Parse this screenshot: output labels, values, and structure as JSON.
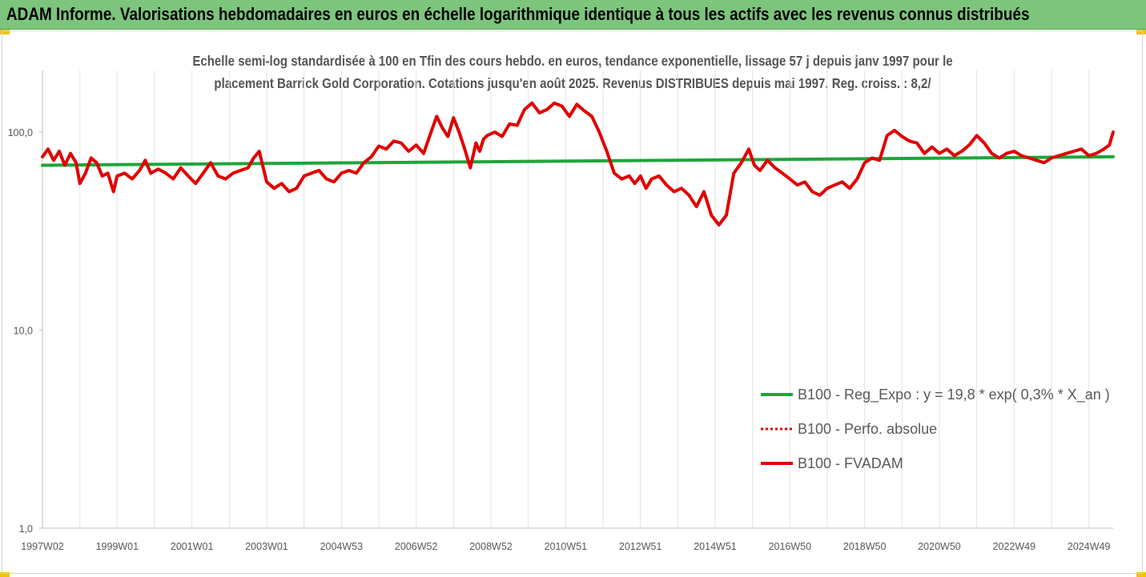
{
  "banner": {
    "title": "ADAM Informe. Valorisations hebdomadaires en euros en échelle logarithmique identique à tous les actifs avec les revenus connus distribués",
    "background": "#7dc47d"
  },
  "chart_data": {
    "type": "line",
    "title_line1": "Echelle semi-log standardisée à 100 en Tfin des cours hebdo. en euros, tendance exponentielle, lissage 57 j depuis janv 1997 pour le",
    "title_line2": "placement Barrick Gold Corporation. Cotations jusqu'en août 2025. Revenus DISTRIBUES depuis mai 1997. Reg. croiss. : 8,2/",
    "y_scale": "log",
    "ylim": [
      1,
      200
    ],
    "y_ticks": [
      {
        "value": 1,
        "label": "1,0"
      },
      {
        "value": 10,
        "label": "10,0"
      },
      {
        "value": 100,
        "label": "100,0"
      }
    ],
    "xlim": [
      1997.0,
      2025.65
    ],
    "x_ticks": [
      {
        "value": 1997.0,
        "label": "1997W02"
      },
      {
        "value": 1999.0,
        "label": "1999W01"
      },
      {
        "value": 2001.0,
        "label": "2001W01"
      },
      {
        "value": 2003.0,
        "label": "2003W01"
      },
      {
        "value": 2005.0,
        "label": "2004W53"
      },
      {
        "value": 2007.0,
        "label": "2006W52"
      },
      {
        "value": 2009.0,
        "label": "2008W52"
      },
      {
        "value": 2011.0,
        "label": "2010W51"
      },
      {
        "value": 2013.0,
        "label": "2012W51"
      },
      {
        "value": 2015.0,
        "label": "2014W51"
      },
      {
        "value": 2017.0,
        "label": "2016W50"
      },
      {
        "value": 2019.0,
        "label": "2018W50"
      },
      {
        "value": 2021.0,
        "label": "2020W50"
      },
      {
        "value": 2023.0,
        "label": "2022W49"
      },
      {
        "value": 2025.0,
        "label": "2024W49"
      }
    ],
    "grid": "vertical",
    "legend_position": "bottom-right",
    "series": [
      {
        "name": "B100 - Reg_Expo : y = 19,8 * exp( 0,3% *  X_an )",
        "color": "#1fa53a",
        "style": "solid",
        "x": [
          1997.0,
          2025.65
        ],
        "y": [
          68,
          75
        ]
      },
      {
        "name": "B100 - Perfo. absolue",
        "color": "#e00000",
        "style": "dotted",
        "x": [],
        "y": []
      },
      {
        "name": "B100 - FVADAM",
        "color": "#e00000",
        "style": "solid",
        "x": [
          1997.0,
          1997.15,
          1997.3,
          1997.45,
          1997.6,
          1997.75,
          1997.9,
          1998.0,
          1998.15,
          1998.3,
          1998.45,
          1998.6,
          1998.75,
          1998.9,
          1999.0,
          1999.2,
          1999.4,
          1999.6,
          1999.75,
          1999.9,
          2000.1,
          2000.3,
          2000.5,
          2000.7,
          2000.9,
          2001.1,
          2001.3,
          2001.5,
          2001.7,
          2001.9,
          2002.1,
          2002.3,
          2002.5,
          2002.65,
          2002.8,
          2003.0,
          2003.2,
          2003.4,
          2003.6,
          2003.8,
          2004.0,
          2004.2,
          2004.4,
          2004.6,
          2004.8,
          2005.0,
          2005.2,
          2005.4,
          2005.6,
          2005.8,
          2006.0,
          2006.2,
          2006.4,
          2006.6,
          2006.8,
          2007.0,
          2007.2,
          2007.4,
          2007.55,
          2007.7,
          2007.85,
          2008.0,
          2008.15,
          2008.3,
          2008.45,
          2008.6,
          2008.7,
          2008.8,
          2008.9,
          2009.1,
          2009.3,
          2009.5,
          2009.7,
          2009.9,
          2010.1,
          2010.3,
          2010.5,
          2010.7,
          2010.9,
          2011.1,
          2011.3,
          2011.5,
          2011.7,
          2011.9,
          2012.1,
          2012.3,
          2012.5,
          2012.7,
          2012.85,
          2013.0,
          2013.15,
          2013.3,
          2013.5,
          2013.7,
          2013.9,
          2014.1,
          2014.3,
          2014.5,
          2014.7,
          2014.9,
          2015.1,
          2015.3,
          2015.5,
          2015.7,
          2015.9,
          2016.05,
          2016.2,
          2016.4,
          2016.6,
          2016.8,
          2017.0,
          2017.2,
          2017.4,
          2017.6,
          2017.8,
          2018.0,
          2018.2,
          2018.4,
          2018.6,
          2018.8,
          2019.0,
          2019.2,
          2019.4,
          2019.6,
          2019.8,
          2020.0,
          2020.2,
          2020.4,
          2020.6,
          2020.8,
          2021.0,
          2021.2,
          2021.4,
          2021.6,
          2021.8,
          2022.0,
          2022.2,
          2022.4,
          2022.6,
          2022.8,
          2023.0,
          2023.2,
          2023.4,
          2023.6,
          2023.8,
          2024.0,
          2024.2,
          2024.4,
          2024.6,
          2024.8,
          2025.0,
          2025.2,
          2025.4,
          2025.55,
          2025.65
        ],
        "y": [
          75,
          82,
          72,
          80,
          68,
          78,
          70,
          55,
          62,
          74,
          70,
          60,
          62,
          50,
          60,
          62,
          58,
          64,
          72,
          62,
          65,
          62,
          58,
          66,
          60,
          55,
          62,
          70,
          60,
          58,
          62,
          64,
          66,
          74,
          80,
          56,
          52,
          55,
          50,
          52,
          60,
          62,
          64,
          58,
          56,
          62,
          64,
          62,
          70,
          75,
          85,
          82,
          90,
          88,
          80,
          86,
          78,
          100,
          120,
          105,
          95,
          118,
          100,
          82,
          66,
          88,
          80,
          92,
          96,
          100,
          95,
          110,
          108,
          130,
          140,
          125,
          130,
          140,
          135,
          120,
          138,
          128,
          120,
          100,
          80,
          62,
          58,
          60,
          55,
          60,
          52,
          58,
          60,
          54,
          50,
          52,
          48,
          42,
          50,
          38,
          34,
          38,
          62,
          70,
          82,
          68,
          64,
          72,
          66,
          62,
          58,
          54,
          56,
          50,
          48,
          52,
          54,
          56,
          52,
          58,
          70,
          74,
          72,
          96,
          102,
          95,
          90,
          88,
          78,
          84,
          78,
          82,
          76,
          80,
          86,
          96,
          88,
          78,
          74,
          78,
          80,
          76,
          74,
          72,
          70,
          74,
          76,
          78,
          80,
          82,
          76,
          78,
          82,
          86,
          100
        ]
      }
    ]
  }
}
